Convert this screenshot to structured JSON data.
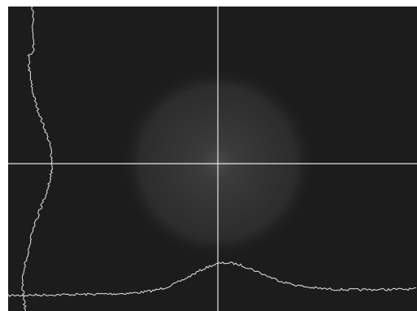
{
  "viewer": {
    "background_color": "#1c1c1c",
    "line_color": "#e6e6e6",
    "beam_glow_color": "#474747",
    "crosshair": true
  }
}
